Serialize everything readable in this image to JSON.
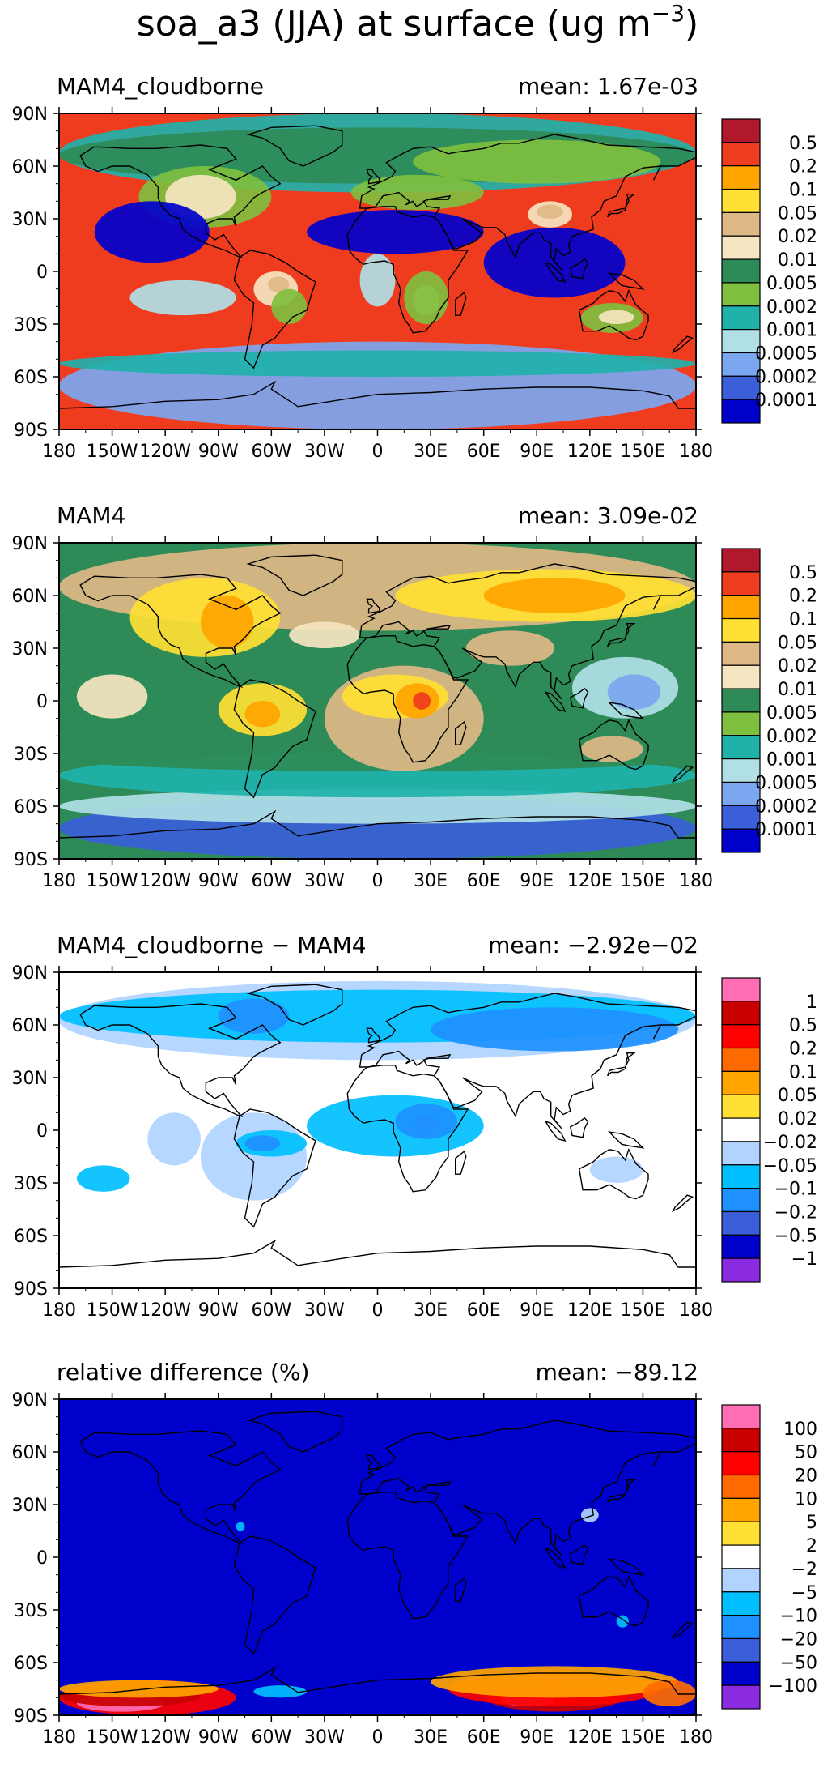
{
  "title": {
    "main": "soa_a3 (JJA) at surface (ug m",
    "exp": "−3",
    "close": ")"
  },
  "x_ticks": [
    "180",
    "150W",
    "120W",
    "90W",
    "60W",
    "30W",
    "0",
    "30E",
    "60E",
    "90E",
    "120E",
    "150E",
    "180"
  ],
  "y_ticks": [
    "90N",
    "60N",
    "30N",
    "0",
    "30S",
    "60S",
    "90S"
  ],
  "colors": {
    "land_outline": "#000000",
    "frame": "#000000"
  },
  "panels": [
    {
      "id": "p1",
      "left_title": "MAM4_cloudborne",
      "right_title": "mean: 1.67e-03",
      "dominant_fill_index": 1,
      "legend": {
        "labels": [
          "0.5",
          "0.2",
          "0.1",
          "0.05",
          "0.02",
          "0.01",
          "0.005",
          "0.002",
          "0.001",
          "0.0005",
          "0.0002",
          "0.0001"
        ],
        "colors": [
          "#b2182b",
          "#f03c1e",
          "#ffa500",
          "#ffe033",
          "#deb887",
          "#f5e5c0",
          "#2e8b57",
          "#7fbf3f",
          "#20b2aa",
          "#b0e0e6",
          "#7ba7f0",
          "#3a5fd9",
          "#0000cd"
        ]
      }
    },
    {
      "id": "p2",
      "left_title": "MAM4",
      "right_title": "mean: 3.09e-02",
      "dominant_fill_index": 6,
      "legend": {
        "labels": [
          "0.5",
          "0.2",
          "0.1",
          "0.05",
          "0.02",
          "0.01",
          "0.005",
          "0.002",
          "0.001",
          "0.0005",
          "0.0002",
          "0.0001"
        ],
        "colors": [
          "#b2182b",
          "#f03c1e",
          "#ffa500",
          "#ffe033",
          "#deb887",
          "#f5e5c0",
          "#2e8b57",
          "#7fbf3f",
          "#20b2aa",
          "#b0e0e6",
          "#7ba7f0",
          "#3a5fd9",
          "#0000cd"
        ]
      }
    },
    {
      "id": "p3",
      "left_title": "MAM4_cloudborne − MAM4",
      "right_title": "mean: −2.92e−02",
      "dominant_fill_index": 6,
      "legend": {
        "labels": [
          "1",
          "0.5",
          "0.2",
          "0.1",
          "0.05",
          "0.02",
          "−0.02",
          "−0.05",
          "−0.1",
          "−0.2",
          "−0.5",
          "−1"
        ],
        "colors": [
          "#ff6eb4",
          "#c80000",
          "#ff0000",
          "#ff6a00",
          "#ffa500",
          "#ffe033",
          "#ffffff",
          "#b0d4ff",
          "#00bfff",
          "#1e90ff",
          "#3a5fd9",
          "#0000cd",
          "#8a2be2"
        ]
      }
    },
    {
      "id": "p4",
      "left_title": "relative difference (%)",
      "right_title": "mean: −89.12",
      "dominant_fill_index": 11,
      "legend": {
        "labels": [
          "100",
          "50",
          "20",
          "10",
          "5",
          "2",
          "−2",
          "−5",
          "−10",
          "−20",
          "−50",
          "−100"
        ],
        "colors": [
          "#ff6eb4",
          "#c80000",
          "#ff0000",
          "#ff6a00",
          "#ffa500",
          "#ffe033",
          "#ffffff",
          "#b0d4ff",
          "#00bfff",
          "#1e90ff",
          "#3a5fd9",
          "#0000cd",
          "#8a2be2"
        ]
      }
    }
  ]
}
